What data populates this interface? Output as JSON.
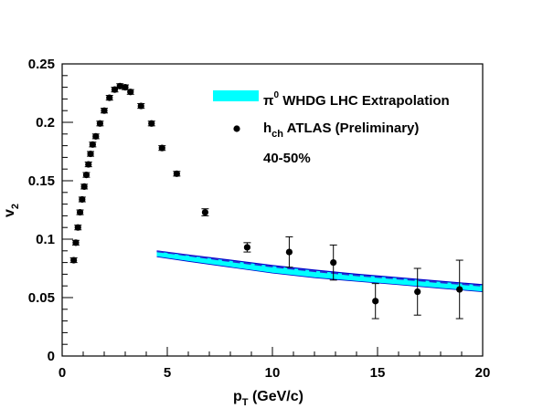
{
  "chart_data": {
    "type": "scatter",
    "xlabel": {
      "main": "p",
      "sub": "T",
      "rest": " (GeV/c)"
    },
    "ylabel": {
      "main": "v",
      "sub": "2"
    },
    "xlim": [
      0,
      20
    ],
    "ylim": [
      0,
      0.25
    ],
    "x_ticks": [
      0,
      5,
      10,
      15,
      20
    ],
    "x_tick_labels": [
      "0",
      "5",
      "10",
      "15",
      "20"
    ],
    "y_ticks": [
      0,
      0.05,
      0.1,
      0.15,
      0.2,
      0.25
    ],
    "y_tick_labels": [
      "0",
      "0.05",
      "0.1",
      "0.15",
      "0.2",
      "0.25"
    ],
    "grid": false,
    "legend_position": "top-right",
    "legend": [
      {
        "symbol": "band",
        "main": "π",
        "sup": "0",
        "rest": " WHDG LHC Extrapolation"
      },
      {
        "symbol": "marker",
        "main": "h",
        "sub": "ch",
        "rest": " ATLAS (Preliminary)"
      }
    ],
    "annotation": "40-50%",
    "colors": {
      "band_fill": "#00ffff",
      "band_edge": "#0000cc",
      "central_line": "#2a2ad0",
      "marker": "#000000"
    },
    "band": {
      "name": "π0 WHDG LHC Extrapolation",
      "x": [
        4.5,
        6,
        8,
        10,
        12,
        14,
        16,
        18,
        20
      ],
      "lower": [
        0.085,
        0.081,
        0.076,
        0.071,
        0.067,
        0.064,
        0.061,
        0.058,
        0.055
      ],
      "upper": [
        0.09,
        0.0865,
        0.082,
        0.0775,
        0.0735,
        0.07,
        0.067,
        0.064,
        0.061
      ],
      "central": [
        0.0895,
        0.086,
        0.081,
        0.0765,
        0.0725,
        0.069,
        0.066,
        0.063,
        0.06
      ]
    },
    "series": [
      {
        "name": "hch ATLAS (Preliminary)",
        "points": [
          {
            "x": 0.55,
            "y": 0.082,
            "yerr": 0.002
          },
          {
            "x": 0.65,
            "y": 0.097,
            "yerr": 0.002
          },
          {
            "x": 0.75,
            "y": 0.11,
            "yerr": 0.002
          },
          {
            "x": 0.85,
            "y": 0.123,
            "yerr": 0.002
          },
          {
            "x": 0.95,
            "y": 0.134,
            "yerr": 0.002
          },
          {
            "x": 1.05,
            "y": 0.145,
            "yerr": 0.002
          },
          {
            "x": 1.15,
            "y": 0.155,
            "yerr": 0.002
          },
          {
            "x": 1.25,
            "y": 0.164,
            "yerr": 0.002
          },
          {
            "x": 1.35,
            "y": 0.173,
            "yerr": 0.002
          },
          {
            "x": 1.45,
            "y": 0.181,
            "yerr": 0.002
          },
          {
            "x": 1.6,
            "y": 0.188,
            "yerr": 0.002
          },
          {
            "x": 1.8,
            "y": 0.199,
            "yerr": 0.002
          },
          {
            "x": 2.0,
            "y": 0.21,
            "yerr": 0.002
          },
          {
            "x": 2.25,
            "y": 0.221,
            "yerr": 0.002
          },
          {
            "x": 2.5,
            "y": 0.228,
            "yerr": 0.002
          },
          {
            "x": 2.75,
            "y": 0.231,
            "yerr": 0.002
          },
          {
            "x": 3.0,
            "y": 0.23,
            "yerr": 0.002
          },
          {
            "x": 3.25,
            "y": 0.226,
            "yerr": 0.002
          },
          {
            "x": 3.75,
            "y": 0.214,
            "yerr": 0.002
          },
          {
            "x": 4.25,
            "y": 0.199,
            "yerr": 0.002
          },
          {
            "x": 4.75,
            "y": 0.178,
            "yerr": 0.002
          },
          {
            "x": 5.45,
            "y": 0.156,
            "yerr": 0.002
          },
          {
            "x": 6.8,
            "y": 0.123,
            "yerr": 0.003
          },
          {
            "x": 8.8,
            "y": 0.093,
            "yerr": 0.004
          },
          {
            "x": 10.8,
            "y": 0.089,
            "yerr": 0.013
          },
          {
            "x": 12.9,
            "y": 0.08,
            "yerr": 0.015
          },
          {
            "x": 14.9,
            "y": 0.047,
            "yerr": 0.015
          },
          {
            "x": 16.9,
            "y": 0.055,
            "yerr": 0.02
          },
          {
            "x": 18.9,
            "y": 0.057,
            "yerr": 0.025
          }
        ]
      }
    ]
  }
}
